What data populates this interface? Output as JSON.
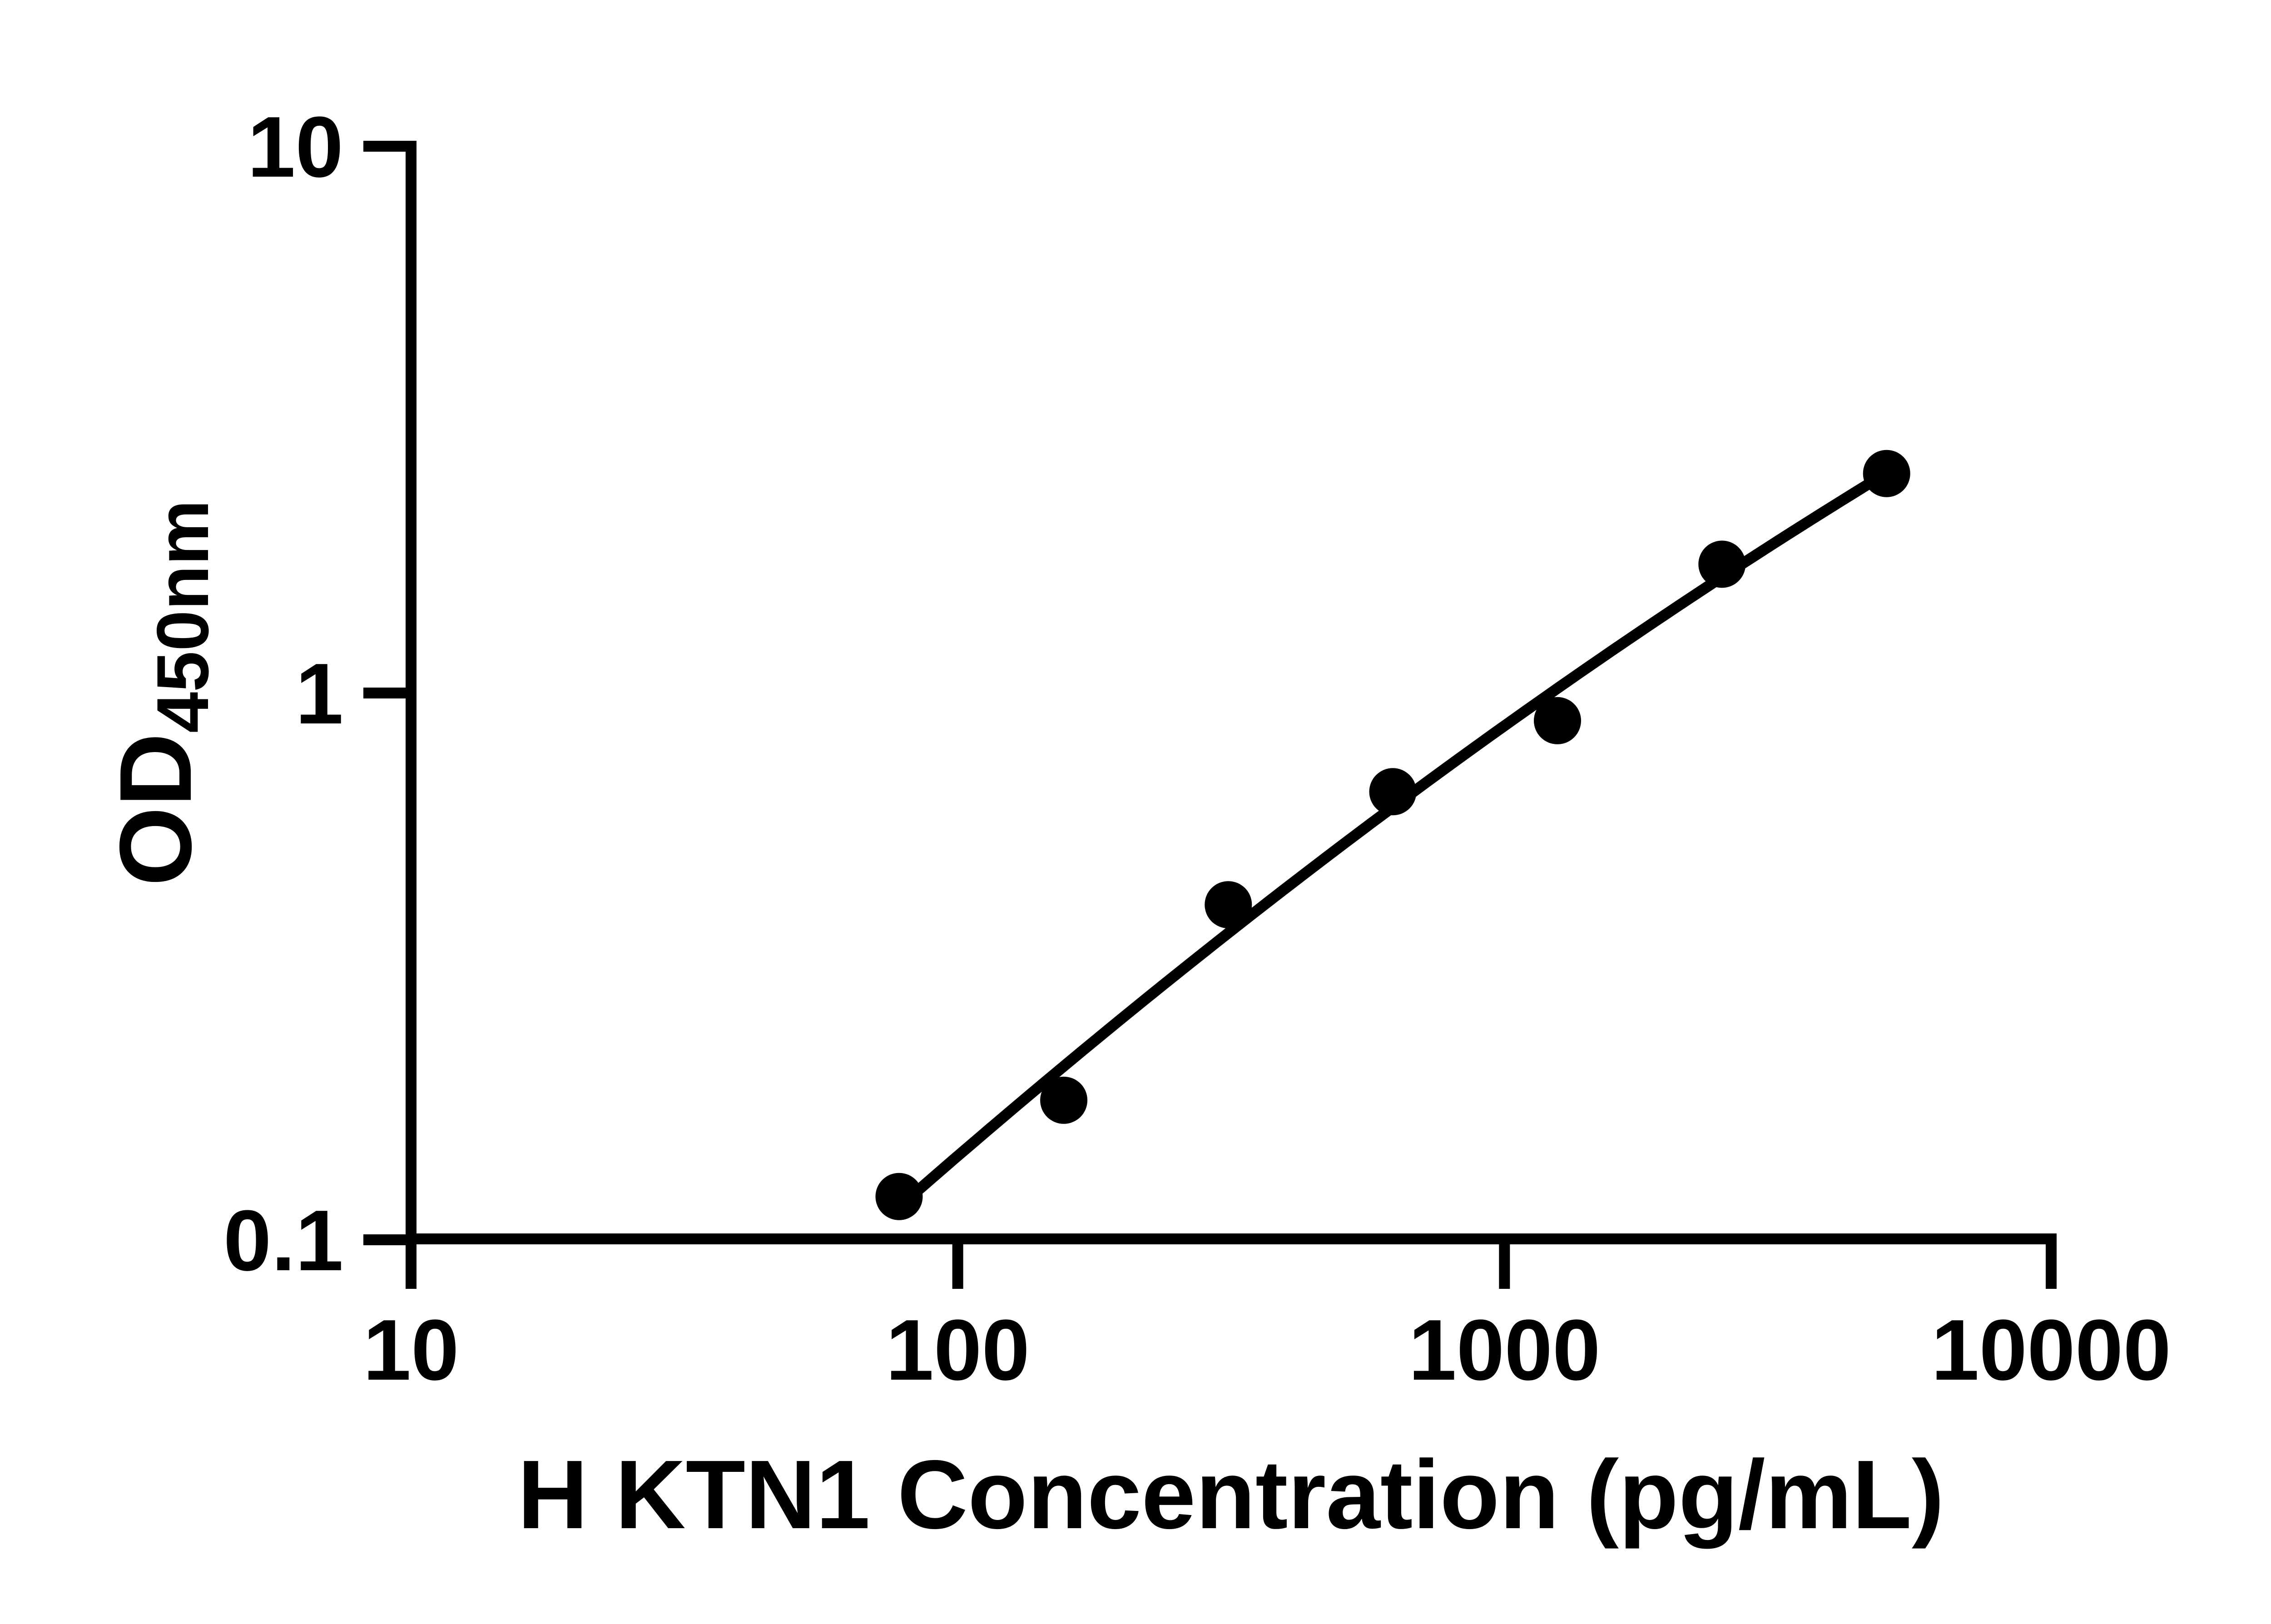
{
  "chart_data": {
    "type": "scatter",
    "title": "",
    "xlabel": "H KTN1 Concentration (pg/mL)",
    "ylabel": "OD450nm",
    "ylabel_main": "OD",
    "ylabel_sub": "450nm",
    "x_scale": "log10",
    "y_scale": "log10",
    "xlim": [
      10,
      10000
    ],
    "ylim": [
      0.1,
      10
    ],
    "x_ticks": [
      10,
      100,
      1000,
      10000
    ],
    "x_tick_labels": [
      "10",
      "100",
      "1000",
      "10000"
    ],
    "y_ticks": [
      10,
      1,
      0.1
    ],
    "y_tick_labels": [
      "10",
      "1",
      "0.1"
    ],
    "grid": false,
    "legend": false,
    "background": "#ffffff",
    "marker_color": "#000000",
    "line_color": "#000000",
    "fit": "smooth standard-curve regression (quadratic in log-log space)",
    "points": [
      {
        "x": 78.1,
        "y": 0.12
      },
      {
        "x": 156.3,
        "y": 0.18
      },
      {
        "x": 312.5,
        "y": 0.41
      },
      {
        "x": 625,
        "y": 0.66
      },
      {
        "x": 1250,
        "y": 0.89
      },
      {
        "x": 2500,
        "y": 1.72
      },
      {
        "x": 5000,
        "y": 2.52
      }
    ]
  }
}
